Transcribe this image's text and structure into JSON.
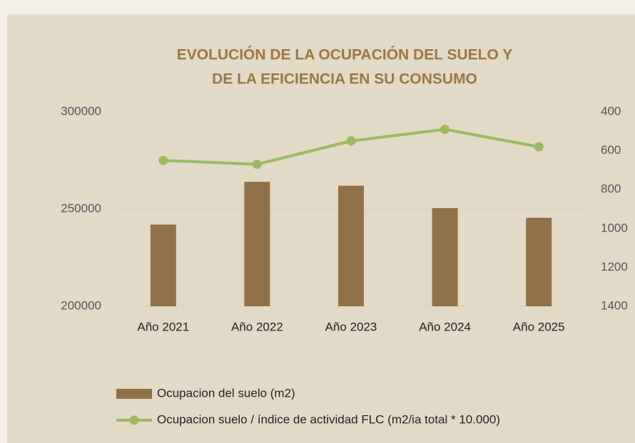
{
  "chart_data": {
    "type": "bar_line",
    "title": [
      "EVOLUCIÓN DE LA OCUPACIÓN DEL SUELO Y",
      "DE LA EFICIENCIA EN SU CONSUMO"
    ],
    "categories": [
      "Año 2021",
      "Año 2022",
      "Año 2023",
      "Año 2024",
      "Año 2025"
    ],
    "series": [
      {
        "name": "Ocupacion del suelo (m2)",
        "type": "bar",
        "color": "#8f7249",
        "values": [
          242000,
          264000,
          262000,
          250500,
          245500
        ]
      },
      {
        "name": "Ocupacion suelo / índice de actividad FLC (m2/ia total * 10.000)",
        "type": "line",
        "axis": "y2",
        "color": "#9cba5f",
        "values": [
          650,
          670,
          550,
          490,
          580
        ]
      }
    ],
    "ylim": [
      200000,
      300000
    ],
    "yticks": [
      200000,
      250000,
      300000
    ],
    "y2lim": [
      400,
      1400
    ],
    "y2ticks": [
      400,
      600,
      800,
      1000,
      1200,
      1400
    ],
    "y2_reversed": true,
    "grid": true,
    "legend": "bottom"
  }
}
